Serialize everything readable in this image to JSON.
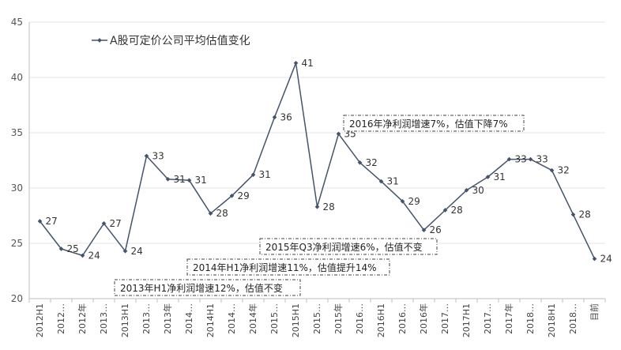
{
  "chart_data": {
    "type": "line",
    "legend": "A股可定价公司平均估值变化",
    "legend_position": "top-left",
    "grid": true,
    "ylim": [
      20,
      45
    ],
    "yticks": [
      20,
      25,
      30,
      35,
      40,
      45
    ],
    "categories": [
      "2012H1",
      "2012…",
      "2012年",
      "2013…",
      "2013H1",
      "2013…",
      "2013年",
      "2014…",
      "2014H1",
      "2014…",
      "2014年",
      "2015…",
      "2015H1",
      "2015…",
      "2015年",
      "2016…",
      "2016H1",
      "2016…",
      "2016年",
      "2017…",
      "2017H1",
      "2017…",
      "2017年",
      "2018…",
      "2018H1",
      "2018…",
      "目前"
    ],
    "series": [
      {
        "name": "A股可定价公司平均估值变化",
        "color": "#44546a",
        "values": [
          27.0,
          24.5,
          23.9,
          26.8,
          24.3,
          32.9,
          30.8,
          30.7,
          27.7,
          29.3,
          31.2,
          36.4,
          41.3,
          28.3,
          34.9,
          32.3,
          30.6,
          28.8,
          26.2,
          28.0,
          29.8,
          31.0,
          32.6,
          32.6,
          31.6,
          27.6,
          23.6
        ],
        "labels": [
          "27",
          "25",
          "24",
          "27",
          "24",
          "33",
          "31",
          "31",
          "28",
          "29",
          "31",
          "36",
          "41",
          "28",
          "35",
          "32",
          "31",
          "29",
          "26",
          "28",
          "30",
          "31",
          "33",
          "33",
          "32",
          "28",
          "24"
        ]
      }
    ],
    "annotations": [
      "2016年净利润增速7%，估值下降7%",
      "2015年Q3净利润增速6%，估值不变",
      "2014年H1净利润增速11%，估值提升14%",
      "2013年H1净利润增速12%，估值不变"
    ]
  }
}
